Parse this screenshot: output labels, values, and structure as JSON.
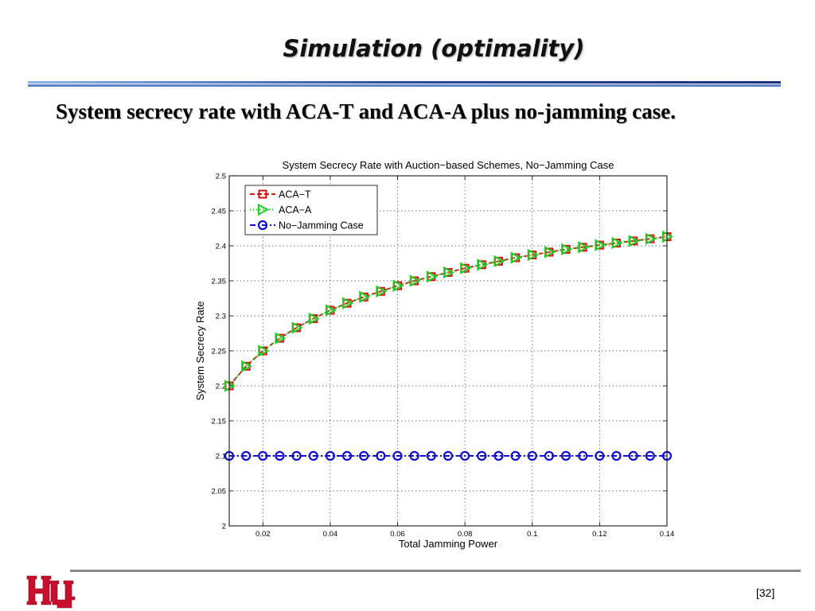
{
  "slide": {
    "title": "Simulation (optimality)",
    "subtitle": "System secrecy rate with ACA-T and ACA-A plus no-jamming case.",
    "page_number": "[32]",
    "logo": "university-of-houston-uh-logo"
  },
  "colors": {
    "aca_t": "#d91010",
    "aca_a": "#22cc22",
    "no_jam": "#1010cc",
    "rule": "#2a4a9a",
    "logo": "#c8102e"
  },
  "chart_data": {
    "type": "line",
    "title": "System Secrecy Rate with Auction−based Schemes, No−Jamming Case",
    "xlabel": "Total Jamming Power",
    "ylabel": "System Secrecy Rate",
    "xlim": [
      0.01,
      0.14
    ],
    "ylim": [
      2.0,
      2.5
    ],
    "grid": true,
    "legend_position": "top-left",
    "x_ticks": [
      0.02,
      0.04,
      0.06,
      0.08,
      0.1,
      0.12,
      0.14
    ],
    "x_tick_labels": [
      "0.02",
      "0.04",
      "0.06",
      "0.08",
      "0.1",
      "0.12",
      "0.14"
    ],
    "y_ticks": [
      2.0,
      2.05,
      2.1,
      2.15,
      2.2,
      2.25,
      2.3,
      2.35,
      2.4,
      2.45,
      2.5
    ],
    "y_tick_labels": [
      "2",
      "2.05",
      "2.1",
      "2.15",
      "2.2",
      "2.25",
      "2.3",
      "2.35",
      "2.4",
      "2.45",
      "2.5"
    ],
    "x": [
      0.01,
      0.015,
      0.02,
      0.025,
      0.03,
      0.035,
      0.04,
      0.045,
      0.05,
      0.055,
      0.06,
      0.065,
      0.07,
      0.075,
      0.08,
      0.085,
      0.09,
      0.095,
      0.1,
      0.105,
      0.11,
      0.115,
      0.12,
      0.125,
      0.13,
      0.135,
      0.14
    ],
    "series": [
      {
        "name": "ACA−T",
        "color": "#d91010",
        "line": "dashed",
        "marker": "square",
        "values": [
          2.2,
          2.228,
          2.25,
          2.268,
          2.283,
          2.296,
          2.308,
          2.318,
          2.327,
          2.335,
          2.343,
          2.35,
          2.356,
          2.362,
          2.368,
          2.373,
          2.378,
          2.383,
          2.387,
          2.391,
          2.395,
          2.398,
          2.401,
          2.404,
          2.407,
          2.41,
          2.413
        ]
      },
      {
        "name": "ACA−A",
        "color": "#22cc22",
        "line": "dotted",
        "marker": "triangle-right",
        "values": [
          2.2,
          2.228,
          2.25,
          2.268,
          2.283,
          2.296,
          2.308,
          2.318,
          2.327,
          2.335,
          2.343,
          2.35,
          2.356,
          2.362,
          2.368,
          2.373,
          2.378,
          2.383,
          2.387,
          2.391,
          2.395,
          2.398,
          2.401,
          2.404,
          2.407,
          2.41,
          2.413
        ]
      },
      {
        "name": "No−Jamming Case",
        "color": "#1010cc",
        "line": "dashdot",
        "marker": "circle",
        "values": [
          2.1,
          2.1,
          2.1,
          2.1,
          2.1,
          2.1,
          2.1,
          2.1,
          2.1,
          2.1,
          2.1,
          2.1,
          2.1,
          2.1,
          2.1,
          2.1,
          2.1,
          2.1,
          2.1,
          2.1,
          2.1,
          2.1,
          2.1,
          2.1,
          2.1,
          2.1,
          2.1
        ]
      }
    ]
  }
}
